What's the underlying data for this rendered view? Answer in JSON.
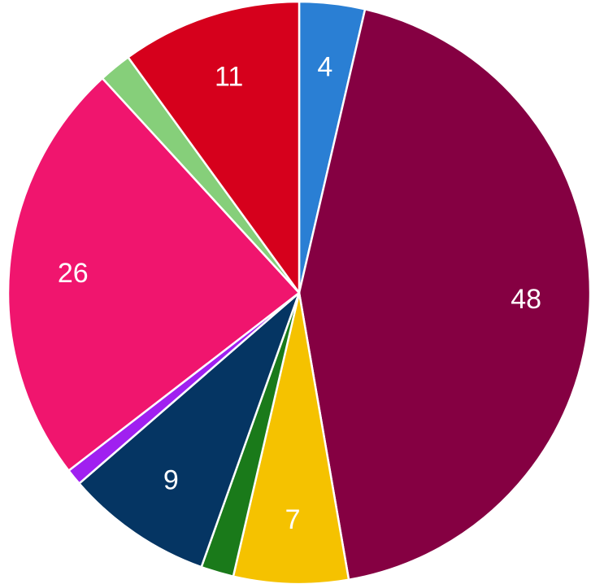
{
  "chart_data": {
    "type": "pie",
    "title": "",
    "start_angle_deg": 0,
    "direction": "clockwise",
    "slices": [
      {
        "value": 4,
        "label": "4",
        "color": "#2a7fd4"
      },
      {
        "value": 48,
        "label": "48",
        "color": "#850042"
      },
      {
        "value": 7,
        "label": "7",
        "color": "#f5c200"
      },
      {
        "value": 2,
        "label": "",
        "color": "#1a7a1a"
      },
      {
        "value": 9,
        "label": "9",
        "color": "#053563"
      },
      {
        "value": 1,
        "label": "",
        "color": "#a020f0"
      },
      {
        "value": 26,
        "label": "26",
        "color": "#f0156e"
      },
      {
        "value": 2,
        "label": "",
        "color": "#86cf7a"
      },
      {
        "value": 11,
        "label": "11",
        "color": "#d6001c"
      }
    ]
  }
}
